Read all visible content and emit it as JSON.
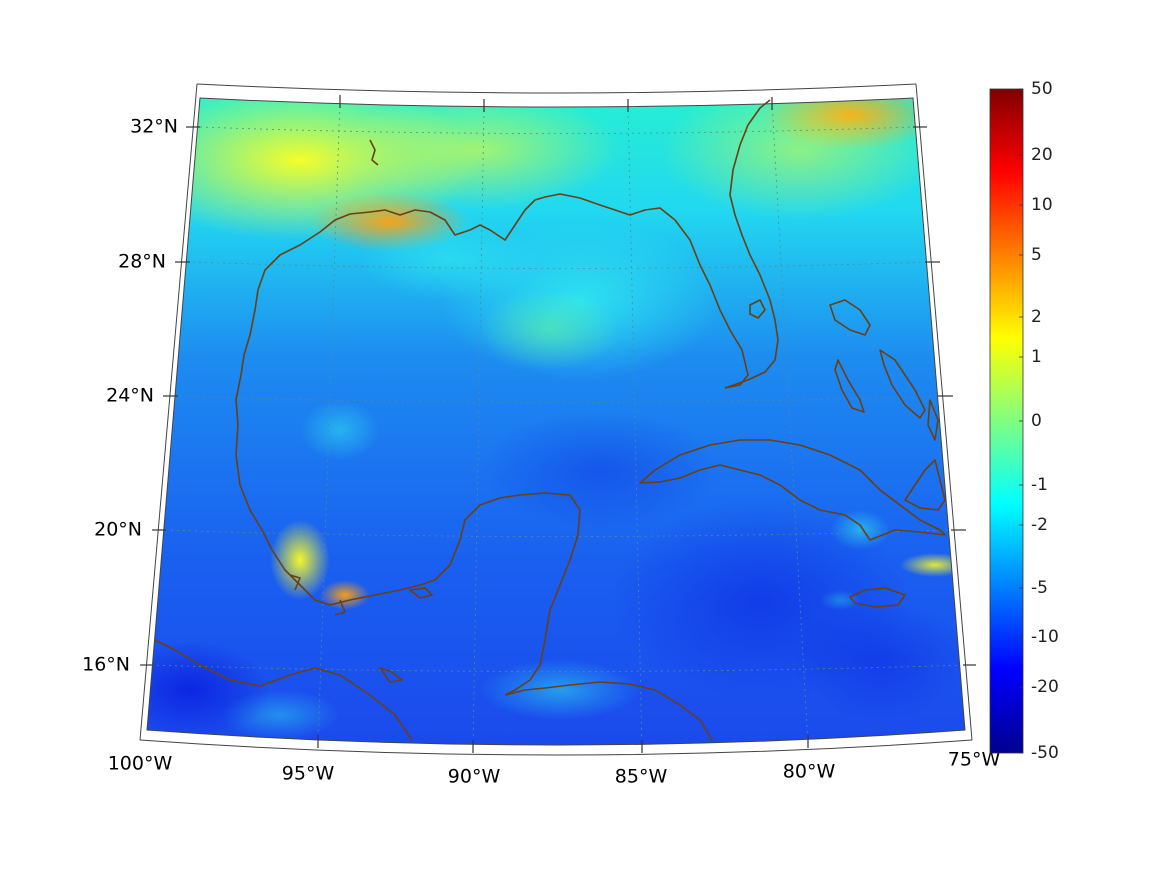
{
  "map": {
    "projection": "lambert-conformal-conic",
    "extent": {
      "lon": [
        -100,
        -75
      ],
      "lat": [
        14,
        33
      ]
    },
    "lon_labels": [
      "100°W",
      "95°W",
      "90°W",
      "85°W",
      "80°W",
      "75°W"
    ],
    "lat_labels": [
      "32°N",
      "28°N",
      "24°N",
      "20°N",
      "16°N"
    ],
    "grid": "dotted",
    "coastline_color": "#6b3f12",
    "colormap": "jet"
  },
  "colorbar": {
    "labels": [
      "50",
      "20",
      "10",
      "5",
      "2",
      "1",
      "0",
      "-1",
      "-2",
      "-5",
      "-10",
      "-20",
      "-50"
    ]
  }
}
